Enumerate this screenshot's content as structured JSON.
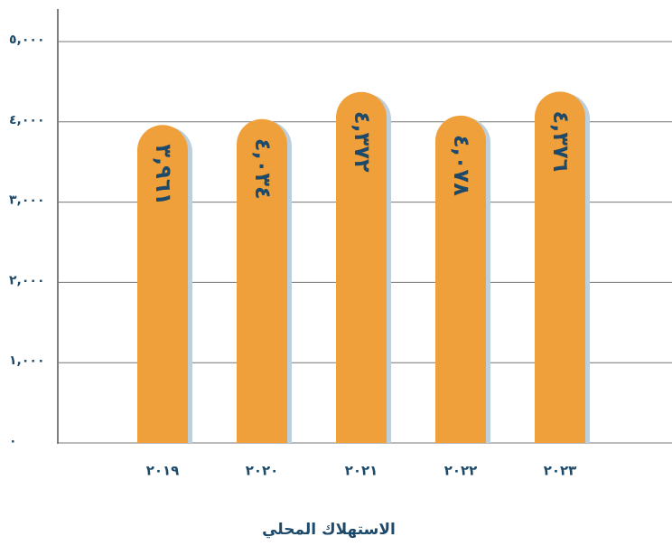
{
  "chart_data": {
    "type": "bar",
    "x_label": "الاستهلاك المحلي",
    "categories": [
      "٢٠١٩",
      "٢٠٢٠",
      "٢٠٢١",
      "٢٠٢٢",
      "٢٠٢٣"
    ],
    "values": [
      3961,
      4034,
      4372,
      4078,
      4376
    ],
    "value_labels": [
      "٣,٩٦١",
      "٤,٠٣٤",
      "٤,٣٧٢",
      "٤,٠٧٨",
      "٤,٣٧٦"
    ],
    "color": "#f0a03a",
    "shadow_color": "#bccfdb",
    "ylim": [
      0,
      5000
    ],
    "yticks": [
      {
        "value": 0,
        "label": "٠"
      },
      {
        "value": 1000,
        "label": "١,٠٠٠"
      },
      {
        "value": 2000,
        "label": "٢,٠٠٠"
      },
      {
        "value": 3000,
        "label": "٣,٠٠٠"
      },
      {
        "value": 4000,
        "label": "٤,٠٠٠"
      },
      {
        "value": 5000,
        "label": "٥,٠٠٠"
      }
    ],
    "grid": true
  }
}
